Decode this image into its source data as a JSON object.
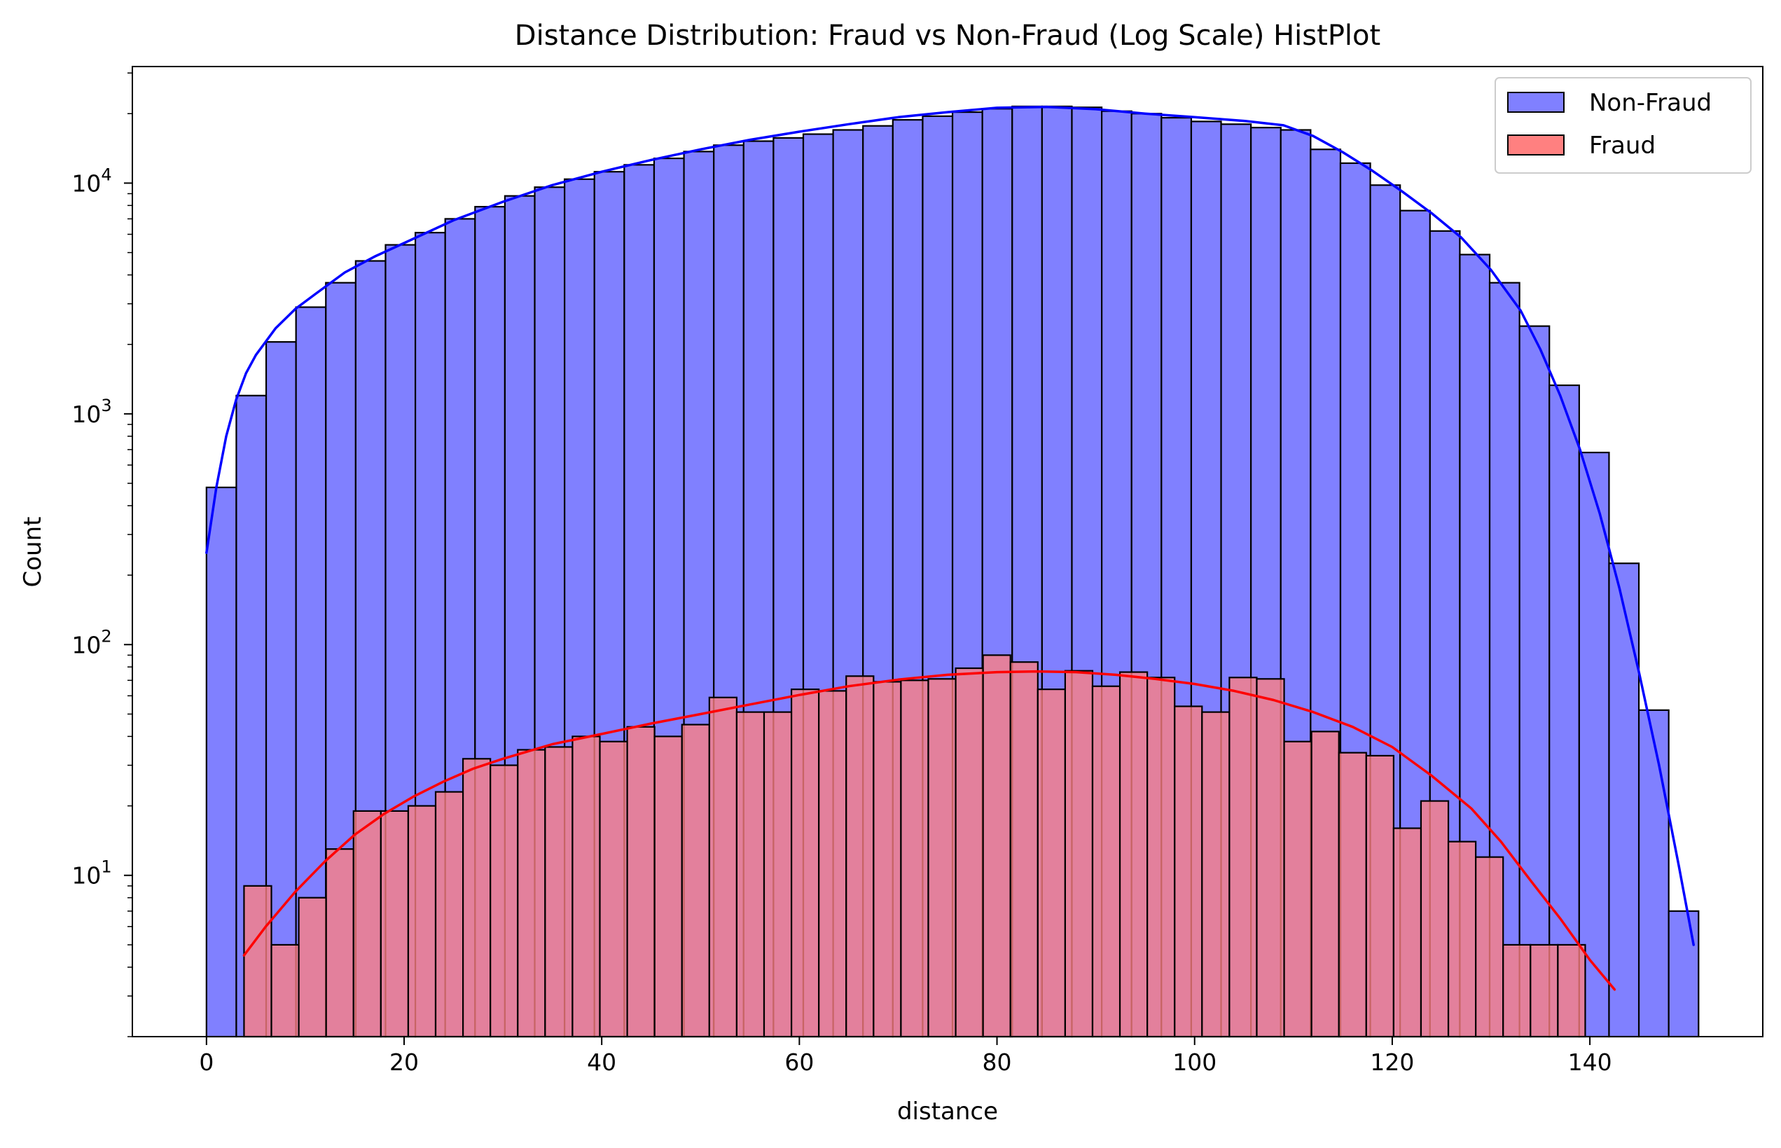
{
  "chart_data": {
    "type": "histogram",
    "title": "Distance Distribution: Fraud vs Non-Fraud (Log Scale) HistPlot",
    "xlabel": "distance",
    "ylabel": "Count",
    "xlim": [
      -7.5,
      157.5
    ],
    "ylim": [
      2,
      32000
    ],
    "yscale": "log",
    "grid": false,
    "legend_position": "top-right",
    "x_ticks": [
      0,
      20,
      40,
      60,
      80,
      100,
      120,
      140
    ],
    "y_ticks": [
      {
        "value": 10,
        "base": "10",
        "exp": "1"
      },
      {
        "value": 100,
        "base": "10",
        "exp": "2"
      },
      {
        "value": 1000,
        "base": "10",
        "exp": "3"
      },
      {
        "value": 10000,
        "base": "10",
        "exp": "4"
      }
    ],
    "series": [
      {
        "name": "Non-Fraud",
        "fill": "#8080ff",
        "line_color": "#0000ff",
        "bin_start": 0,
        "bin_width": 3.02,
        "values": [
          480,
          1200,
          2050,
          2900,
          3700,
          4600,
          5400,
          6100,
          7000,
          7900,
          8800,
          9600,
          10400,
          11200,
          12000,
          12800,
          13700,
          14600,
          15200,
          15700,
          16300,
          17000,
          17700,
          18800,
          19500,
          20300,
          21000,
          21500,
          21500,
          21300,
          20500,
          20000,
          19200,
          18500,
          18000,
          17400,
          17000,
          14000,
          12200,
          9800,
          7600,
          6200,
          4900,
          3700,
          2400,
          1330,
          680,
          225,
          52,
          7
        ],
        "kde_x": [
          0,
          1,
          2,
          3,
          4,
          5,
          7,
          9,
          11,
          14,
          17,
          20,
          25,
          30,
          35,
          40,
          45,
          50,
          55,
          60,
          65,
          70,
          75,
          80,
          85,
          90,
          95,
          100,
          105,
          109,
          112,
          115,
          118,
          121,
          124,
          127,
          130,
          133,
          135,
          137,
          139,
          141,
          143,
          145,
          147,
          149,
          150.5
        ],
        "kde_y": [
          250,
          480,
          800,
          1150,
          1500,
          1800,
          2350,
          2850,
          3300,
          4100,
          4800,
          5500,
          6900,
          8300,
          9800,
          11200,
          12600,
          14000,
          15400,
          16700,
          18000,
          19300,
          20300,
          21200,
          21400,
          20900,
          20000,
          19300,
          18600,
          17800,
          16000,
          13600,
          11300,
          9200,
          7400,
          5800,
          4200,
          2800,
          1900,
          1200,
          700,
          370,
          175,
          75,
          30,
          11,
          5
        ]
      },
      {
        "name": "Fraud",
        "fill": "#ff8080",
        "line_color": "#ff0000",
        "bin_start": 3.8,
        "bin_width": 2.77,
        "values": [
          9,
          5,
          8,
          13,
          19,
          19,
          20,
          23,
          32,
          30,
          35,
          36,
          40,
          38,
          44,
          40,
          45,
          59,
          51,
          51,
          64,
          63,
          73,
          69,
          70,
          71,
          79,
          90,
          84,
          64,
          77,
          66,
          76,
          72,
          54,
          51,
          72,
          71,
          38,
          42,
          34,
          33,
          16,
          21,
          14,
          12,
          5,
          5,
          5
        ],
        "kde_x": [
          3.8,
          6,
          9,
          12,
          15,
          18,
          21,
          24,
          27,
          30,
          35,
          40,
          45,
          50,
          55,
          60,
          65,
          70,
          75,
          80,
          84,
          88,
          92,
          96,
          100,
          104,
          108,
          112,
          116,
          120,
          124,
          128,
          131,
          134,
          137,
          140,
          142.5
        ],
        "kde_y": [
          4.5,
          6,
          8.5,
          11.5,
          15,
          18.5,
          22,
          25.5,
          29,
          32,
          37,
          41,
          45.5,
          50,
          55,
          60.5,
          66,
          70.5,
          74,
          76,
          76.5,
          76,
          74,
          71,
          67.5,
          63,
          57.5,
          51,
          44,
          36,
          27,
          19.5,
          14,
          9.5,
          6.5,
          4.3,
          3.2
        ]
      }
    ]
  }
}
